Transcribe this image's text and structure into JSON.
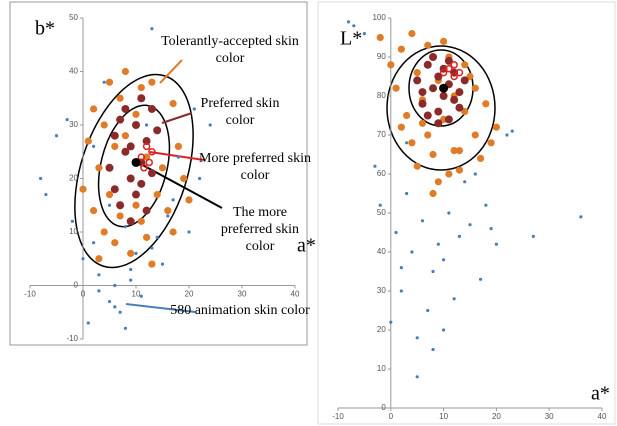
{
  "chart_data": [
    {
      "type": "scatter",
      "x_label": "a*",
      "y_label": "b*",
      "xlim": [
        -10,
        40
      ],
      "ylim": [
        -10,
        50
      ],
      "xticks": [
        -10,
        0,
        10,
        20,
        30,
        40
      ],
      "yticks": [
        -10,
        0,
        10,
        20,
        30,
        40,
        50
      ],
      "series": [
        {
          "name": "580 animation skin color",
          "color": "#4a7ebb",
          "x": [
            -8,
            -7,
            -5,
            -3,
            -2,
            0,
            1,
            2,
            3,
            4,
            5,
            5,
            6,
            7,
            8,
            8,
            9,
            10,
            11,
            12,
            13,
            14,
            15,
            16,
            18,
            20,
            22,
            24,
            13,
            3,
            6,
            9,
            2,
            17,
            21
          ],
          "y": [
            20,
            17,
            28,
            31,
            12,
            5,
            -7,
            8,
            2,
            38,
            -3,
            15,
            0,
            -5,
            11,
            -8,
            3,
            6,
            -2,
            30,
            48,
            9,
            4,
            13,
            24,
            10,
            20,
            30,
            7,
            -1,
            -4,
            1,
            26,
            16,
            33
          ]
        },
        {
          "name": "Tolerantly-accepted skin color",
          "color": "#e07b28",
          "x": [
            0,
            1,
            2,
            2,
            3,
            4,
            4,
            5,
            5,
            6,
            6,
            7,
            7,
            8,
            9,
            9,
            10,
            11,
            11,
            12,
            12,
            13,
            14,
            14,
            15,
            16,
            17,
            18,
            19,
            20,
            3,
            8,
            13,
            17,
            10
          ],
          "y": [
            18,
            27,
            14,
            33,
            22,
            10,
            30,
            17,
            38,
            8,
            26,
            35,
            13,
            40,
            20,
            6,
            32,
            12,
            37,
            24,
            9,
            38,
            17,
            29,
            22,
            14,
            34,
            26,
            20,
            16,
            5,
            28,
            4,
            10,
            15
          ]
        },
        {
          "name": "Preferred skin color",
          "color": "#8b2a2a",
          "x": [
            5,
            6,
            6,
            7,
            8,
            8,
            9,
            9,
            10,
            10,
            11,
            11,
            12,
            12,
            13,
            14,
            7,
            13,
            9,
            11
          ],
          "y": [
            22,
            18,
            28,
            15,
            25,
            33,
            20,
            12,
            30,
            17,
            35,
            23,
            27,
            14,
            21,
            29,
            31,
            33,
            26,
            19
          ]
        },
        {
          "name": "More preferred skin color",
          "color": "#e02020",
          "x": [
            11,
            12,
            12.5,
            11.5,
            13
          ],
          "y": [
            24,
            26,
            23,
            22,
            25
          ]
        },
        {
          "name": "The more preferred skin color",
          "color": "#000000",
          "x": [
            10
          ],
          "y": [
            23
          ]
        }
      ]
    },
    {
      "type": "scatter",
      "x_label": "a*",
      "y_label": "L*",
      "xlim": [
        -10,
        40
      ],
      "ylim": [
        0,
        100
      ],
      "xticks": [
        -10,
        0,
        10,
        20,
        30,
        40
      ],
      "yticks": [
        0,
        10,
        20,
        30,
        40,
        50,
        60,
        70,
        80,
        90,
        100
      ],
      "series": [
        {
          "color": "#4a7ebb",
          "x": [
            -8,
            -7,
            -5,
            -3,
            -2,
            0,
            1,
            2,
            3,
            4,
            5,
            6,
            7,
            8,
            8,
            9,
            10,
            11,
            12,
            13,
            14,
            15,
            16,
            17,
            18,
            19,
            20,
            22,
            23,
            27,
            36,
            3,
            5,
            10,
            2
          ],
          "y": [
            99,
            98,
            96,
            62,
            52,
            22,
            45,
            30,
            55,
            40,
            8,
            48,
            25,
            35,
            15,
            42,
            38,
            50,
            28,
            44,
            58,
            47,
            60,
            33,
            52,
            46,
            42,
            70,
            71,
            44,
            49,
            68,
            18,
            20,
            36
          ]
        },
        {
          "color": "#e07b28",
          "x": [
            -2,
            0,
            1,
            2,
            3,
            4,
            5,
            5,
            6,
            7,
            7,
            8,
            9,
            9,
            10,
            11,
            12,
            12,
            13,
            14,
            15,
            16,
            17,
            18,
            19,
            20,
            4,
            8,
            11,
            14,
            6,
            10,
            16,
            2,
            13
          ],
          "y": [
            95,
            88,
            82,
            92,
            75,
            68,
            86,
            62,
            79,
            93,
            70,
            65,
            84,
            58,
            74,
            90,
            66,
            80,
            61,
            76,
            85,
            70,
            64,
            78,
            68,
            72,
            96,
            55,
            60,
            88,
            73,
            94,
            82,
            72,
            66
          ]
        },
        {
          "color": "#8b2a2a",
          "x": [
            5,
            6,
            7,
            7,
            8,
            8,
            9,
            9,
            10,
            10,
            11,
            11,
            12,
            12,
            13,
            14,
            6,
            9,
            11,
            13
          ],
          "y": [
            84,
            78,
            88,
            75,
            82,
            90,
            76,
            85,
            80,
            87,
            74,
            83,
            79,
            86,
            81,
            84,
            81,
            73,
            89,
            77
          ]
        },
        {
          "color": "#e02020",
          "x": [
            10,
            11,
            12,
            12,
            13
          ],
          "y": [
            86,
            87,
            85,
            88,
            86
          ]
        },
        {
          "color": "#000000",
          "x": [
            10
          ],
          "y": [
            82
          ]
        }
      ]
    }
  ]
}
